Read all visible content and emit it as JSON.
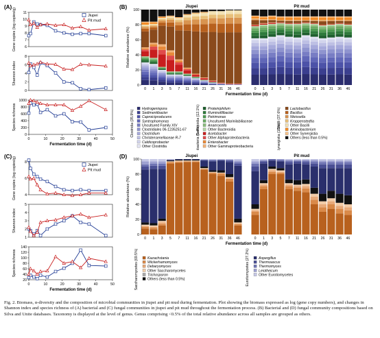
{
  "panels": {
    "A": {
      "label": "(A)",
      "legend": [
        "Jiupei",
        "Pit mud"
      ],
      "xlabel": "Fermentation time (d)",
      "subplots": [
        {
          "ylabel": "Gene copies (log copies/g)",
          "yticks": [
            6,
            7,
            8,
            9,
            10,
            11
          ]
        },
        {
          "ylabel": "Shannon index",
          "yticks": [
            0,
            2,
            4,
            6,
            8
          ]
        },
        {
          "ylabel": "Species richness",
          "yticks": [
            0,
            200,
            400,
            600,
            800,
            1000
          ]
        }
      ],
      "xticks": [
        0,
        10,
        20,
        30,
        40,
        50
      ]
    },
    "C": {
      "label": "(C)",
      "legend": [
        "Jiupei",
        "Pit mud"
      ],
      "xlabel": "Fermentation time (d)",
      "subplots": [
        {
          "ylabel": "Gene copies (log copies/g)",
          "yticks": [
            4,
            6,
            8
          ]
        },
        {
          "ylabel": "Shannon index",
          "yticks": [
            1,
            2,
            3,
            4,
            5
          ]
        },
        {
          "ylabel": "Species richness",
          "yticks": [
            20,
            40,
            60,
            80,
            100,
            120,
            140
          ]
        }
      ],
      "xticks": [
        0,
        10,
        20,
        30,
        40,
        50
      ]
    },
    "B": {
      "label": "(B)",
      "group_titles": [
        "Jiupei",
        "Pit mud"
      ],
      "ylabel": "Relative abundance (%)",
      "xlabel": "Fermentation time (d)",
      "yticks": [
        0,
        20,
        40,
        60,
        80,
        100
      ],
      "days": [
        "0",
        "1",
        "3",
        "5",
        "7",
        "11",
        "16",
        "21",
        "26",
        "31",
        "36",
        "46"
      ]
    },
    "D": {
      "label": "(D)",
      "group_titles": [
        "Jiupei",
        "Pit mud"
      ],
      "ylabel": "Relative abundance (%)",
      "xlabel": "Fermentation time (d)",
      "yticks": [
        0,
        20,
        40,
        60,
        80,
        100
      ],
      "days": [
        "0",
        "1",
        "3",
        "5",
        "7",
        "11",
        "16",
        "21",
        "26",
        "31",
        "36",
        "46"
      ]
    }
  },
  "colors": {
    "jiupei": "#1f3a93",
    "pitmud": "#c81e1e",
    "clostridia": [
      "#2b2d6e",
      "#3b3f8f",
      "#4c52a8",
      "#6167b8",
      "#787dc4",
      "#8f94cf",
      "#a7aadb",
      "#bec0e4",
      "#d2d4ec"
    ],
    "bacteroidia": [
      "#1f5e2e",
      "#3f8a4a",
      "#6aaa63",
      "#9cc98f"
    ],
    "proteobacteria": [
      "#c81e1e",
      "#e0663a",
      "#ee9b6a"
    ],
    "bacilli": [
      "#8a4a1c",
      "#b8611e",
      "#e0b15a",
      "#f0dba0",
      "#f3e7bc"
    ],
    "synergistia": [
      "#f28c28"
    ],
    "fungal": [
      "#b8611e",
      "#d97d3a",
      "#e7a06a",
      "#f1c39a",
      "#c9a98a",
      "#2a2f6c",
      "#4a4f94",
      "#7277b5",
      "#a4a7d6",
      "#111111"
    ]
  },
  "legend_B": {
    "Clostridia": {
      "label": "Clostridia (35.9%)",
      "items": [
        "Hydrogenispora",
        "Sedimentibacter",
        "Caproiciproducens",
        "Syntrophomonas",
        "Uncultured Family XIV",
        "Clostridiales 06-1235251-67",
        "Clostridium",
        "Christensenellaceae R-7",
        "Caldicoprobacter",
        "Other Clostridia"
      ]
    },
    "Bacteroidia": {
      "label": "Bacteroidia (12.1%)",
      "items": [
        "Proteiniphilum",
        "Ruminofilibacter",
        "Petrimonas",
        "Uncultured Marinilabiliaceae",
        "Anaerocella",
        "Other Bacteroidia"
      ]
    },
    "Proteobacteria": {
      "label": "Proteobacteria (1.4%)",
      "items": [
        "Acetobacter",
        "Other Alphaproteobacteria",
        "Enterobacter",
        "Other Gammaproteobacteria"
      ]
    },
    "Bacilli": {
      "label": "Bacilli (37.6%)",
      "items": [
        "Lactobacillus",
        "Bacillus",
        "Weissella",
        "Kroppenstedtia",
        "Other Bacilli"
      ]
    },
    "Synergistia": {
      "label": "Synergistia (1.2%)",
      "items": [
        "Aminobacterium",
        "Other Synergistia"
      ]
    },
    "Others": {
      "items": [
        "Others (less than 0.5%)"
      ]
    }
  },
  "legend_D": {
    "Saccharomycetes": {
      "label": "Saccharomycetes (69.5%)",
      "items": [
        "Kazachstania",
        "Wickerhamomyces",
        "Debaryomyces",
        "Other Saccharomycetes",
        "Trichosporon",
        "Others (less than 0.5%)"
      ]
    },
    "Eurotiomycetes": {
      "label": "Eurotiomycetes (27.2%)",
      "items": [
        "Aspergillus",
        "Thermoascus",
        "Thermomyces",
        "Leiotheicum",
        "Other Eurotiomycetes"
      ]
    }
  },
  "caption": "Fig. 2. Biomass, α-diversity and the composition of microbial communities in jiupei and pit mud during fermentation. Plot showing the biomass expressed as log (gene copy numbers), and changes in Shannon index and species richness of (A) bacterial and (C) fungal communities in jiupei and pit mud throughout the fermentation process. (B) Bacterial and (D) fungal community compositions based on Silva and Unite databases. Taxonomy is displayed at the level of genus. Genus comprising <0.5% of the total relative abundance across all samples are grouped as others."
}
